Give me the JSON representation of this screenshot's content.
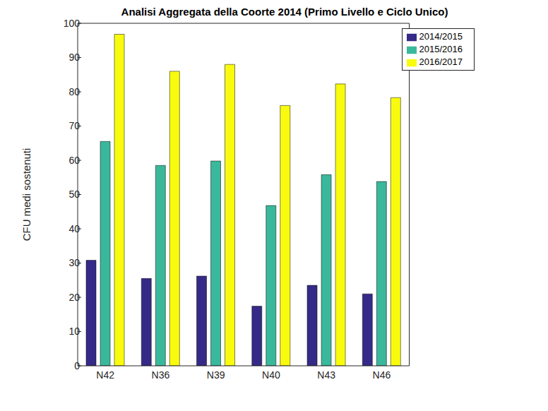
{
  "chart_data": {
    "type": "bar",
    "title": "Analisi Aggregata della Coorte 2014 (Primo Livello e Ciclo Unico)",
    "y_label": "CFU medi sostenuti",
    "categories": [
      "N42",
      "N36",
      "N39",
      "N40",
      "N43",
      "N46"
    ],
    "series": [
      {
        "name": "2014/2015",
        "color": "#352a87",
        "values": [
          30.8,
          25.5,
          26.2,
          17.4,
          23.5,
          21
        ]
      },
      {
        "name": "2015/2016",
        "color": "#3ab89b",
        "values": [
          65.5,
          58.5,
          59.8,
          46.8,
          55.8,
          53.8
        ]
      },
      {
        "name": "2016/2017",
        "color": "#f9fb0e",
        "values": [
          96.8,
          86,
          88,
          76,
          82.3,
          78.3
        ]
      }
    ],
    "ylim": [
      0,
      100
    ],
    "yticks": [
      0,
      10,
      20,
      30,
      40,
      50,
      60,
      70,
      80,
      90,
      100
    ],
    "grid": false,
    "legend": "top-right"
  }
}
